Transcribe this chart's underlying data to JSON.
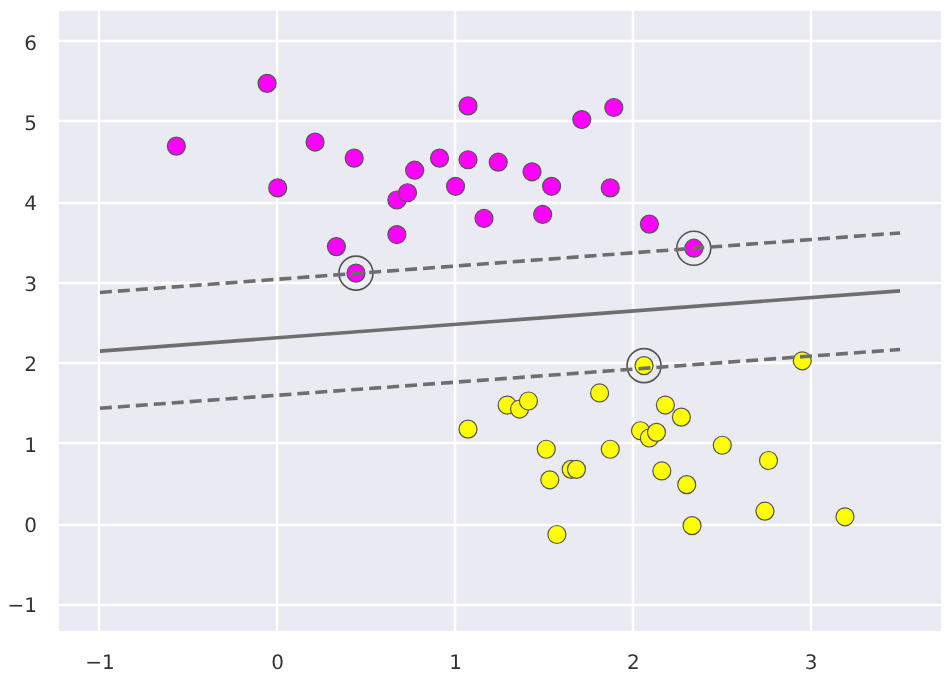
{
  "chart_data": {
    "type": "scatter",
    "xlim": [
      -1.23,
      3.73
    ],
    "ylim": [
      -1.33,
      6.38
    ],
    "xticks": [
      -1,
      0,
      1,
      2,
      3
    ],
    "yticks": [
      -1,
      0,
      1,
      2,
      3,
      4,
      5,
      6
    ],
    "grid": true,
    "series": [
      {
        "color": "#ff00ff",
        "marker": "circle",
        "x": [
          -0.57,
          -0.06,
          0,
          0.21,
          0.43,
          0.33,
          0.44,
          0.67,
          0.67,
          0.73,
          0.77,
          0.91,
          1.0,
          1.07,
          1.07,
          1.16,
          1.24,
          1.43,
          1.49,
          1.54,
          1.71,
          1.89,
          1.87,
          2.09,
          2.34
        ],
        "values": [
          4.7,
          5.48,
          4.18,
          4.75,
          4.55,
          3.45,
          3.12,
          4.03,
          3.6,
          4.12,
          4.4,
          4.55,
          4.2,
          5.2,
          4.53,
          3.8,
          4.5,
          4.38,
          3.85,
          4.2,
          5.03,
          5.18,
          4.18,
          3.73,
          3.43
        ]
      },
      {
        "color": "#ffff00",
        "marker": "circle",
        "x": [
          2.06,
          2.95,
          1.29,
          1.36,
          1.41,
          1.07,
          1.81,
          2.18,
          2.27,
          2.04,
          2.09,
          2.13,
          1.51,
          1.87,
          2.5,
          2.76,
          1.65,
          1.68,
          1.53,
          2.16,
          2.3,
          2.74,
          2.33,
          3.19,
          1.57
        ],
        "values": [
          1.97,
          2.03,
          1.48,
          1.43,
          1.53,
          1.18,
          1.63,
          1.48,
          1.33,
          1.16,
          1.07,
          1.14,
          0.93,
          0.93,
          0.98,
          0.79,
          0.68,
          0.68,
          0.55,
          0.66,
          0.49,
          0.16,
          -0.02,
          0.09,
          -0.13
        ]
      },
      {
        "type": "bubble",
        "color": "#555555",
        "marker": "circle",
        "x": [
          0.44,
          2.34,
          2.06
        ],
        "values": [
          3.12,
          3.43,
          1.97
        ],
        "sizes": [
          1,
          1,
          1
        ]
      },
      {
        "type": "line",
        "color": "#6e6e6e",
        "marker": "none",
        "line_style": "solid",
        "x": [
          -1,
          3.5
        ],
        "values": [
          2.15,
          2.9
        ]
      },
      {
        "type": "line",
        "color": "#6e6e6e",
        "marker": "none",
        "line_style": "dashed",
        "x": [
          -1,
          3.5
        ],
        "values": [
          2.88,
          3.62
        ]
      },
      {
        "type": "line",
        "color": "#6e6e6e",
        "marker": "none",
        "line_style": "dashed",
        "x": [
          -1,
          3.5
        ],
        "values": [
          1.44,
          2.17
        ]
      }
    ]
  }
}
